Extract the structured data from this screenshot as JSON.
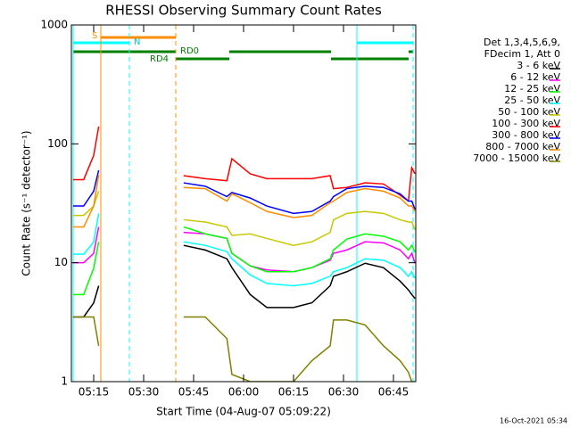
{
  "chart_data": {
    "type": "line",
    "title": "RHESSI Observing Summary Count Rates",
    "x_label": "Start Time (04-Aug-07 05:09:22)",
    "y_label": "Count Rate (s⁻¹ detector⁻¹)",
    "legend_header": [
      "Det 1,3,4,5,6,9,",
      "FDecim 1, Att 0"
    ],
    "footer": "16-Oct-2021 05:34",
    "annotations": [
      "S",
      "N",
      "RD0",
      "RD4"
    ],
    "log_y": true,
    "legend": "right",
    "xlim": [
      8.3,
      111.7
    ],
    "ylim": [
      1,
      1000
    ],
    "xticks": [
      {
        "value": 15,
        "label": "05:15"
      },
      {
        "value": 30,
        "label": "05:30"
      },
      {
        "value": 45,
        "label": "05:45"
      },
      {
        "value": 60,
        "label": "06:00"
      },
      {
        "value": 75,
        "label": "06:15"
      },
      {
        "value": 90,
        "label": "06:30"
      },
      {
        "value": 105,
        "label": "06:45"
      }
    ],
    "yticks": [
      1,
      10,
      100,
      1000
    ],
    "x": [
      8.8,
      12,
      15,
      16.5,
      28,
      42,
      48.5,
      55,
      56.5,
      62,
      67,
      75,
      80.5,
      86,
      87,
      91,
      96.5,
      102,
      107,
      109.5,
      110.5,
      111.5
    ],
    "series": [
      {
        "name": "3 - 6 keV",
        "color": "#000000",
        "values": [
          3.5,
          3.5,
          4.6,
          6.4,
          null,
          14,
          12.8,
          10.8,
          9.1,
          5.4,
          4.2,
          4.2,
          4.6,
          6.4,
          7.7,
          8.4,
          9.9,
          9.1,
          7,
          5.9,
          5.4,
          5.0
        ]
      },
      {
        "name": "6 - 12 keV",
        "color": "#ff00ff",
        "values": [
          10,
          10,
          12,
          20,
          null,
          18,
          17.5,
          16,
          12,
          9.4,
          8.7,
          8.4,
          9.1,
          10.5,
          12,
          12.8,
          15,
          14.7,
          12.8,
          10.8,
          12,
          9.9
        ]
      },
      {
        "name": "12 - 25 keV",
        "color": "#00ff00",
        "values": [
          5.4,
          5.4,
          9,
          15,
          null,
          20,
          17.5,
          16,
          12,
          9.4,
          8.4,
          8.4,
          9.1,
          10.8,
          12.8,
          15.8,
          17.5,
          16.7,
          15,
          12.8,
          14,
          12.3
        ]
      },
      {
        "name": "25 - 50 keV",
        "color": "#00ffff",
        "values": [
          11.8,
          11.8,
          15,
          26,
          null,
          15,
          14,
          12.4,
          10.8,
          7.9,
          6.7,
          6.4,
          6.7,
          7.7,
          8.4,
          9.1,
          10.8,
          10.5,
          9.1,
          7.7,
          8.4,
          7.4
        ]
      },
      {
        "name": "50 - 100 keV",
        "color": "#c8c800",
        "values": [
          25,
          25,
          30,
          40,
          null,
          23,
          22,
          20,
          17,
          17.5,
          16,
          14,
          15,
          18,
          23,
          26,
          27,
          26,
          23,
          22,
          22,
          19
        ]
      },
      {
        "name": "100 - 300 keV",
        "color": "#ff0000",
        "values": [
          50,
          50,
          80,
          140,
          null,
          54,
          51,
          49,
          75,
          56,
          51,
          51,
          51,
          54,
          42,
          43,
          47,
          46,
          37,
          33,
          63,
          56
        ]
      },
      {
        "name": "300 - 800 keV",
        "color": "#0000ff",
        "values": [
          30,
          30,
          40,
          60,
          null,
          47,
          44,
          36,
          39,
          35,
          30,
          26,
          27,
          33,
          36,
          42,
          44,
          43,
          38,
          33,
          33,
          28
        ]
      },
      {
        "name": "800 - 7000 keV",
        "color": "#ff8c00",
        "values": [
          20,
          20,
          30,
          55,
          null,
          43,
          42,
          33,
          38,
          32,
          27,
          24,
          25,
          32,
          33,
          39,
          42,
          40,
          35,
          30,
          30,
          27
        ]
      },
      {
        "name": "7000 - 15000 keV",
        "color": "#808000",
        "values": [
          3.5,
          3.5,
          3.5,
          2,
          null,
          3.5,
          3.5,
          2.3,
          1.15,
          1,
          1,
          1,
          1.5,
          2,
          3.3,
          3.3,
          3,
          2,
          1.5,
          1.2,
          1,
          1
        ]
      }
    ]
  }
}
